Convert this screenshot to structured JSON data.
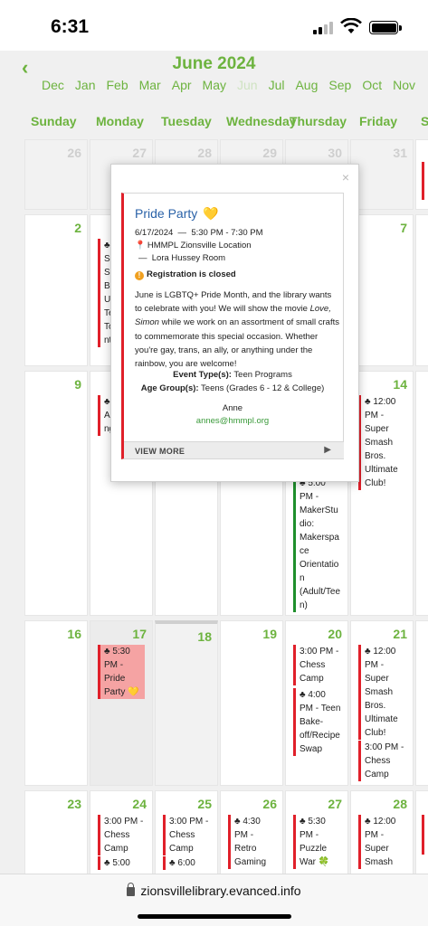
{
  "status": {
    "time": "6:31"
  },
  "calendar": {
    "month_title": "June 2024",
    "months": [
      "Dec",
      "Jan",
      "Feb",
      "Mar",
      "Apr",
      "May",
      "Jun",
      "Jul",
      "Aug",
      "Sep",
      "Oct",
      "Nov"
    ],
    "weekdays": [
      "Sunday",
      "Monday",
      "Tuesday",
      "Wednesday",
      "Thursday",
      "Friday",
      "S"
    ],
    "days": {
      "d26": "26",
      "d27": "27",
      "d28": "28",
      "d29": "29",
      "d30": "30",
      "d31": "31",
      "d2": "2",
      "d7": "7",
      "d9": "9",
      "d14": "14",
      "d16": "16",
      "d17": "17",
      "d18": "18",
      "d19": "19",
      "d20": "20",
      "d21": "21",
      "d23": "23",
      "d24": "24",
      "d25": "25",
      "d26b": "26",
      "d27b": "27",
      "d28b": "28"
    },
    "events": {
      "mon3_frag": "Pl\nSu\nSo\nBr\nUl\nTe\nTo\nnt",
      "mon10_frag": "Pl\nAr\nng",
      "fri14": "12:00\nPM -\nSuper\nSmash\nBros.\nUltimate\nClub!",
      "thu13_maker": "5:00\nPM -\nMakerStu\ndio:\nMakerspa\nce\nOrientatio\nn\n(Adult/Tee\nn)",
      "mon17": "5:30\nPM -\nPride\nParty 💛",
      "thu20_chess": "3:00 PM -\nChess\nCamp",
      "thu20_bake": "4:00\nPM - Teen\nBake-\noff/Recipe\nSwap",
      "fri21_smash": "12:00\nPM -\nSuper\nSmash\nBros.\nUltimate\nClub!",
      "fri21_chess": "3:00 PM -\nChess\nCamp",
      "mon24_chess": "3:00 PM -\nChess\nCamp",
      "mon24_next": "5:00",
      "tue25_chess": "3:00 PM -\nChess\nCamp",
      "tue25_next": "6:00",
      "wed26": "4:30\nPM -\nRetro\nGaming",
      "thu27": "5:30\nPM -\nPuzzle\nWar 🍀",
      "fri28": "12:00\nPM -\nSuper\nSmash"
    }
  },
  "popup": {
    "close": "×",
    "title": "Pride Party",
    "heart": "💛",
    "date_line": "6/17/2024  —  5:30 PM - 7:30 PM",
    "location": "HMMPL Zionsville Location",
    "room": "—  Lora Hussey Room",
    "registration": "Registration is closed",
    "description_1": "June is LGBTQ+ Pride Month, and the library wants to celebrate with you! We will show the movie ",
    "description_movie": "Love, Simon",
    "description_2": " while we work on an assortment of small crafts to commemorate this special occasion. Whether you're gay, trans, an ally, or anything under the rainbow, you are welcome!",
    "event_types_label": "Event Type(s):",
    "event_types": "Teen Programs",
    "age_groups_label": "Age Group(s):",
    "age_groups": "Teens (Grades 6 - 12 & College)",
    "contact_name": "Anne",
    "contact_email": "annes@hmmpl.org",
    "view_more": "VIEW MORE"
  },
  "browser": {
    "url": "zionsvillelibrary.evanced.info"
  },
  "colors": {
    "accent": "#6db33f",
    "event_red": "#e0202a",
    "event_green": "#1f8f2c",
    "link_blue": "#2a62a8"
  }
}
